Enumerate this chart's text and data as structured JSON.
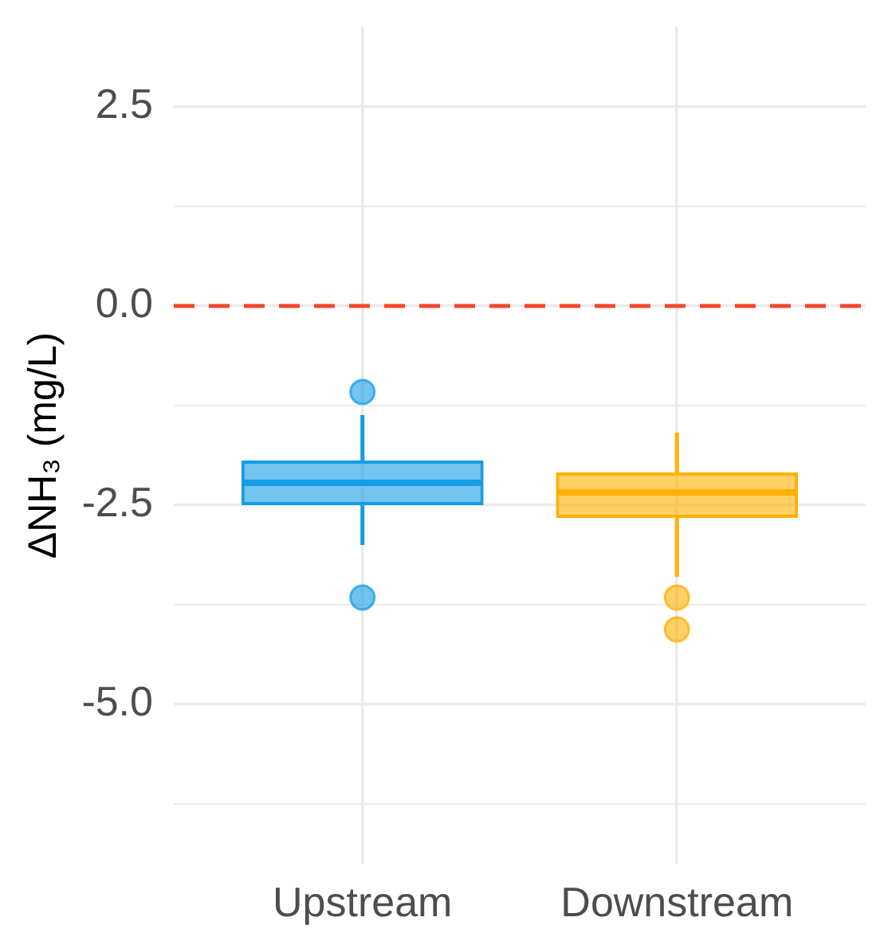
{
  "chart_data": {
    "type": "box",
    "ylabel": "ΔNH₃ (mg/L)",
    "categories": [
      "Upstream",
      "Downstream"
    ],
    "boxes": [
      {
        "low": -3.0,
        "q1": -2.5,
        "median": -2.22,
        "q3": -1.94,
        "high": -1.37,
        "outliers": [
          -1.08,
          -3.66
        ]
      },
      {
        "low": -3.4,
        "q1": -2.66,
        "median": -2.34,
        "q3": -2.09,
        "high": -1.59,
        "outliers": [
          -3.66,
          -4.06
        ]
      }
    ],
    "colors": [
      "#149ce4",
      "#ffb000"
    ],
    "ylim": [
      -7,
      3.5
    ],
    "yticks": [
      {
        "value": -6.25,
        "label": null
      },
      {
        "value": -5,
        "label": "-5.0"
      },
      {
        "value": -3.75,
        "label": null
      },
      -2.5,
      {
        "value": -1.25,
        "label": null
      },
      {
        "value": 0,
        "label": "0.0"
      },
      {
        "value": 1.25,
        "label": null
      },
      2.5
    ],
    "grid": true,
    "ref_lines": [
      {
        "axis": "y",
        "value": 0,
        "color": "#f8462a",
        "line_style": "dashed"
      }
    ]
  }
}
